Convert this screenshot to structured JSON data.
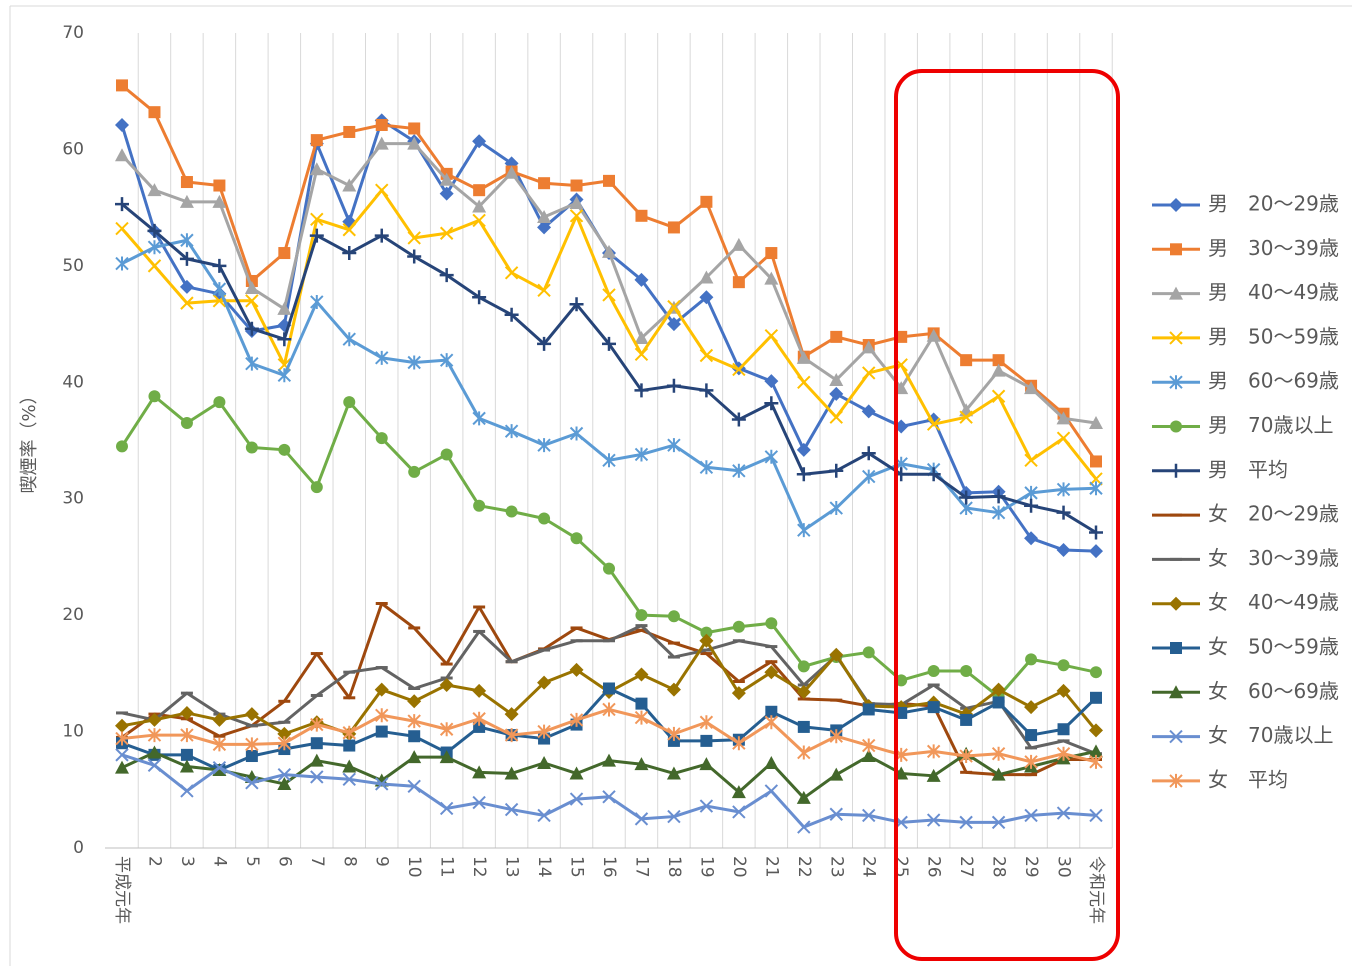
{
  "chart_data": {
    "type": "line",
    "y_label": "喫煙率（%）",
    "categories": [
      "平成元年",
      "2",
      "3",
      "4",
      "5",
      "6",
      "7",
      "8",
      "9",
      "10",
      "11",
      "12",
      "13",
      "14",
      "15",
      "16",
      "17",
      "18",
      "19",
      "20",
      "21",
      "22",
      "23",
      "24",
      "25",
      "26",
      "27",
      "28",
      "29",
      "30",
      "令和元年"
    ],
    "ylim": [
      0,
      70
    ],
    "yticks": [
      0,
      10,
      20,
      30,
      40,
      50,
      60,
      70
    ],
    "grid": "vertical",
    "legend": "right",
    "series": [
      {
        "name": "男　20～29歳",
        "color": "#4472c4",
        "marker": "diamond",
        "values": [
          62.1,
          53,
          48.2,
          47.6,
          44.4,
          44.9,
          60.5,
          53.8,
          62.5,
          60.7,
          56.2,
          60.7,
          58.8,
          53.3,
          55.7,
          51.1,
          48.8,
          45.0,
          47.3,
          41.2,
          40.1,
          34.2,
          39.0,
          37.5,
          36.2,
          36.8,
          30.5,
          30.6,
          26.6,
          25.6,
          25.5
        ]
      },
      {
        "name": "男　30～39歳",
        "color": "#ed7d31",
        "marker": "square",
        "values": [
          65.5,
          63.2,
          57.2,
          56.9,
          48.7,
          51.1,
          60.8,
          61.5,
          62.1,
          61.8,
          57.9,
          56.5,
          58.1,
          57.1,
          56.9,
          57.3,
          54.3,
          53.3,
          55.5,
          48.6,
          51.1,
          42.2,
          43.9,
          43.2,
          43.9,
          44.2,
          41.9,
          41.9,
          39.7,
          37.3,
          33.2
        ]
      },
      {
        "name": "男　40～49歳",
        "color": "#a5a5a5",
        "marker": "triangle",
        "values": [
          59.5,
          56.5,
          55.5,
          55.5,
          48.1,
          46.3,
          58.3,
          56.9,
          60.5,
          60.5,
          57.4,
          55.1,
          58.0,
          54.2,
          55.4,
          51.2,
          43.8,
          46.4,
          49.0,
          51.8,
          48.9,
          42.1,
          40.2,
          43.0,
          39.5,
          44.0,
          37.6,
          41.0,
          39.5,
          36.9,
          36.5
        ]
      },
      {
        "name": "男　50～59歳",
        "color": "#ffc000",
        "marker": "x",
        "values": [
          53.2,
          50.0,
          46.8,
          47.0,
          47.0,
          41.5,
          54.0,
          53.1,
          56.5,
          52.4,
          52.8,
          53.9,
          49.4,
          47.9,
          54.3,
          47.5,
          42.4,
          46.5,
          42.3,
          41.1,
          44.0,
          40.0,
          37.0,
          40.8,
          41.5,
          36.4,
          37.0,
          38.8,
          33.3,
          35.2,
          31.7
        ]
      },
      {
        "name": "男　60～69歳",
        "color": "#5b9bd5",
        "marker": "asterisk",
        "values": [
          50.2,
          51.6,
          52.2,
          48.0,
          41.6,
          40.6,
          46.9,
          43.7,
          42.1,
          41.7,
          41.9,
          36.9,
          35.8,
          34.6,
          35.6,
          33.3,
          33.8,
          34.6,
          32.7,
          32.4,
          33.6,
          27.3,
          29.2,
          31.9,
          33.0,
          32.5,
          29.2,
          28.8,
          30.5,
          30.8,
          30.9
        ]
      },
      {
        "name": "男　70歳以上",
        "color": "#70ad47",
        "marker": "circle",
        "values": [
          34.5,
          38.8,
          36.5,
          38.3,
          34.4,
          34.2,
          31.0,
          38.3,
          35.2,
          32.3,
          33.8,
          29.4,
          28.9,
          28.3,
          26.6,
          24.0,
          20.0,
          19.9,
          18.5,
          19.0,
          19.3,
          15.6,
          16.4,
          16.8,
          14.4,
          15.2,
          15.2,
          13.0,
          16.2,
          15.7,
          15.1
        ]
      },
      {
        "name": "男　平均",
        "color": "#264478",
        "marker": "plus",
        "values": [
          55.3,
          53.0,
          50.6,
          50.0,
          44.6,
          43.7,
          52.6,
          51.1,
          52.6,
          50.8,
          49.2,
          47.3,
          45.8,
          43.3,
          46.7,
          43.3,
          39.3,
          39.7,
          39.3,
          36.8,
          38.2,
          32.1,
          32.4,
          33.9,
          32.1,
          32.1,
          30.1,
          30.2,
          29.4,
          28.8,
          27.1
        ]
      },
      {
        "name": "女　20～29歳",
        "color": "#9e480e",
        "marker": "dash",
        "values": [
          9.5,
          11.5,
          11.1,
          9.6,
          10.5,
          12.6,
          16.7,
          12.9,
          21.0,
          18.9,
          15.8,
          20.7,
          16.0,
          17.1,
          18.9,
          17.9,
          18.7,
          17.6,
          16.7,
          14.3,
          16.0,
          12.8,
          12.7,
          12.2,
          12.4,
          12.2,
          6.5,
          6.3,
          6.3,
          7.6,
          7.6
        ]
      },
      {
        "name": "女　30～39歳",
        "color": "#636363",
        "marker": "dash",
        "values": [
          11.6,
          11.0,
          13.3,
          11.5,
          10.5,
          10.8,
          13.1,
          15.1,
          15.5,
          13.7,
          14.6,
          18.6,
          16.0,
          17.0,
          17.8,
          17.8,
          19.1,
          16.4,
          17.0,
          17.8,
          17.3,
          14.0,
          16.5,
          12.4,
          12.3,
          14.0,
          12.0,
          12.6,
          8.6,
          9.2,
          8.1
        ]
      },
      {
        "name": "女　40～49歳",
        "color": "#997300",
        "marker": "diamond",
        "values": [
          10.5,
          11.0,
          11.6,
          11.0,
          11.5,
          9.8,
          10.8,
          9.8,
          13.6,
          12.6,
          14.0,
          13.5,
          11.5,
          14.2,
          15.3,
          13.4,
          14.9,
          13.6,
          17.8,
          13.3,
          15.1,
          13.4,
          16.6,
          12.2,
          12.1,
          12.5,
          11.5,
          13.6,
          12.1,
          13.5,
          10.1
        ]
      },
      {
        "name": "女　50～59歳",
        "color": "#255e91",
        "marker": "square",
        "values": [
          9.0,
          8.0,
          8.0,
          6.7,
          7.9,
          8.5,
          9.0,
          8.8,
          10.0,
          9.6,
          8.2,
          10.4,
          9.7,
          9.4,
          10.6,
          13.7,
          12.4,
          9.2,
          9.2,
          9.3,
          11.7,
          10.4,
          10.1,
          11.9,
          11.6,
          12.1,
          11.0,
          12.5,
          9.7,
          10.2,
          12.9
        ]
      },
      {
        "name": "女　60～69歳",
        "color": "#43682b",
        "marker": "triangle",
        "values": [
          6.9,
          8.2,
          7.0,
          6.7,
          6.1,
          5.5,
          7.5,
          7.0,
          5.8,
          7.8,
          7.8,
          6.5,
          6.4,
          7.3,
          6.4,
          7.5,
          7.2,
          6.4,
          7.2,
          4.8,
          7.3,
          4.3,
          6.3,
          7.9,
          6.4,
          6.2,
          8.1,
          6.3,
          7.0,
          7.7,
          8.3
        ]
      },
      {
        "name": "女　70歳以上",
        "color": "#698ed0",
        "marker": "x",
        "values": [
          8.0,
          7.1,
          4.9,
          6.9,
          5.6,
          6.3,
          6.1,
          5.9,
          5.5,
          5.3,
          3.4,
          3.9,
          3.3,
          2.8,
          4.2,
          4.4,
          2.5,
          2.7,
          3.6,
          3.1,
          4.9,
          1.8,
          2.9,
          2.8,
          2.2,
          2.4,
          2.2,
          2.2,
          2.8,
          3.0,
          2.8
        ]
      },
      {
        "name": "女　平均",
        "color": "#f1975a",
        "marker": "asterisk",
        "values": [
          9.4,
          9.7,
          9.7,
          8.9,
          8.9,
          9.0,
          10.6,
          9.9,
          11.4,
          10.9,
          10.2,
          11.1,
          9.7,
          10.0,
          11.0,
          11.9,
          11.2,
          9.8,
          10.8,
          9.0,
          10.8,
          8.2,
          9.6,
          8.8,
          8.0,
          8.3,
          7.9,
          8.1,
          7.4,
          8.1,
          7.4
        ]
      }
    ]
  }
}
